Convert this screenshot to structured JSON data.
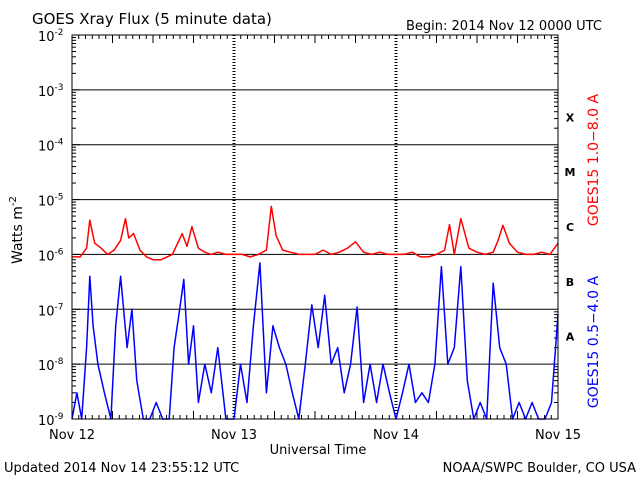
{
  "chart_data": {
    "type": "line",
    "title": "GOES Xray Flux (5 minute data)",
    "begin_label": "Begin:  2014 Nov 12 0000 UTC",
    "xlabel": "Universal Time",
    "ylabel_text": "Watts m",
    "ylabel_exp": "-2",
    "x_ticks": [
      "Nov 12",
      "Nov 13",
      "Nov 14",
      "Nov 15"
    ],
    "xlim_days": [
      0,
      3
    ],
    "y_scale": "log",
    "y_ticks": [
      {
        "base": "10",
        "exp": "-9",
        "log": -9
      },
      {
        "base": "10",
        "exp": "-8",
        "log": -8
      },
      {
        "base": "10",
        "exp": "-7",
        "log": -7
      },
      {
        "base": "10",
        "exp": "-6",
        "log": -6
      },
      {
        "base": "10",
        "exp": "-5",
        "log": -5
      },
      {
        "base": "10",
        "exp": "-4",
        "log": -4
      },
      {
        "base": "10",
        "exp": "-3",
        "log": -3
      },
      {
        "base": "10",
        "exp": "-2",
        "log": -2
      }
    ],
    "ylim_log": [
      -9,
      -2
    ],
    "flare_classes": [
      {
        "label": "X",
        "log": -3.5
      },
      {
        "label": "M",
        "log": -4.5
      },
      {
        "label": "C",
        "log": -5.5
      },
      {
        "label": "B",
        "log": -6.5
      },
      {
        "label": "A",
        "log": -7.5
      }
    ],
    "series": [
      {
        "name": "GOES15 1.0−8.0 A",
        "color": "#ff0000",
        "x": [
          0,
          0.05,
          0.09,
          0.11,
          0.14,
          0.18,
          0.22,
          0.26,
          0.3,
          0.33,
          0.35,
          0.38,
          0.42,
          0.46,
          0.5,
          0.55,
          0.62,
          0.68,
          0.71,
          0.74,
          0.78,
          0.82,
          0.86,
          0.9,
          0.95,
          1.0,
          1.05,
          1.1,
          1.15,
          1.2,
          1.23,
          1.26,
          1.3,
          1.35,
          1.4,
          1.45,
          1.5,
          1.55,
          1.6,
          1.65,
          1.7,
          1.75,
          1.8,
          1.85,
          1.9,
          1.95,
          2.0,
          2.05,
          2.1,
          2.15,
          2.2,
          2.25,
          2.3,
          2.33,
          2.36,
          2.4,
          2.45,
          2.5,
          2.55,
          2.6,
          2.63,
          2.66,
          2.7,
          2.75,
          2.8,
          2.85,
          2.9,
          2.95,
          3.0
        ],
        "y": [
          9e-07,
          9e-07,
          1.3e-06,
          4.2e-06,
          1.6e-06,
          1.3e-06,
          1e-06,
          1.2e-06,
          1.8e-06,
          4.5e-06,
          2e-06,
          2.4e-06,
          1.2e-06,
          9e-07,
          8e-07,
          8e-07,
          1e-06,
          2.4e-06,
          1.4e-06,
          3.2e-06,
          1.3e-06,
          1.1e-06,
          1e-06,
          1.1e-06,
          1e-06,
          1e-06,
          1e-06,
          9e-07,
          1e-06,
          1.2e-06,
          7.5e-06,
          2.2e-06,
          1.2e-06,
          1.1e-06,
          1e-06,
          1e-06,
          1e-06,
          1.2e-06,
          1e-06,
          1.1e-06,
          1.3e-06,
          1.7e-06,
          1.1e-06,
          1e-06,
          1.1e-06,
          1e-06,
          1e-06,
          1e-06,
          1.1e-06,
          9e-07,
          9e-07,
          1e-06,
          1.2e-06,
          3.5e-06,
          1e-06,
          4.5e-06,
          1.3e-06,
          1.1e-06,
          1e-06,
          1.1e-06,
          1.8e-06,
          3.4e-06,
          1.6e-06,
          1.1e-06,
          1e-06,
          1e-06,
          1.1e-06,
          1e-06,
          1.6e-06
        ]
      },
      {
        "name": "GOES15 0.5−4.0 A",
        "color": "#0000ff",
        "x": [
          0,
          0.03,
          0.06,
          0.09,
          0.11,
          0.13,
          0.16,
          0.2,
          0.24,
          0.27,
          0.3,
          0.34,
          0.37,
          0.4,
          0.44,
          0.48,
          0.52,
          0.56,
          0.6,
          0.63,
          0.66,
          0.69,
          0.72,
          0.75,
          0.78,
          0.82,
          0.86,
          0.9,
          0.95,
          1.0,
          1.04,
          1.08,
          1.12,
          1.16,
          1.2,
          1.24,
          1.28,
          1.32,
          1.36,
          1.4,
          1.44,
          1.48,
          1.52,
          1.56,
          1.6,
          1.64,
          1.68,
          1.72,
          1.76,
          1.8,
          1.84,
          1.88,
          1.92,
          1.96,
          2.0,
          2.04,
          2.08,
          2.12,
          2.16,
          2.2,
          2.24,
          2.28,
          2.32,
          2.36,
          2.4,
          2.44,
          2.48,
          2.52,
          2.56,
          2.6,
          2.64,
          2.68,
          2.72,
          2.76,
          2.8,
          2.84,
          2.88,
          2.92,
          2.96,
          3.0
        ],
        "y": [
          1e-09,
          3e-09,
          1e-09,
          2e-08,
          4e-07,
          5e-08,
          1e-08,
          3e-09,
          1e-09,
          5e-08,
          4e-07,
          2e-08,
          1e-07,
          5e-09,
          1e-09,
          1e-09,
          2e-09,
          1e-09,
          1e-09,
          2e-08,
          8e-08,
          3.5e-07,
          1e-08,
          5e-08,
          2e-09,
          1e-08,
          3e-09,
          2e-08,
          1e-09,
          1e-09,
          1e-08,
          2e-09,
          5e-08,
          7e-07,
          3e-09,
          5e-08,
          2e-08,
          1e-08,
          3e-09,
          1e-09,
          1e-08,
          1.2e-07,
          2e-08,
          1.8e-07,
          1e-08,
          2e-08,
          3e-09,
          1e-08,
          1.1e-07,
          2e-09,
          1e-08,
          2e-09,
          1e-08,
          3e-09,
          1e-09,
          3e-09,
          1e-08,
          2e-09,
          3e-09,
          2e-09,
          1e-08,
          6e-07,
          1e-08,
          2e-08,
          6e-07,
          5e-09,
          1e-09,
          2e-09,
          1e-09,
          3e-07,
          2e-08,
          1e-08,
          1e-09,
          2e-09,
          1e-09,
          2e-09,
          1e-09,
          1e-09,
          2e-09,
          8e-08
        ]
      }
    ]
  },
  "footer": {
    "updated": "Updated 2014 Nov 14 23:55:12 UTC",
    "credit": "NOAA/SWPC Boulder, CO USA"
  }
}
